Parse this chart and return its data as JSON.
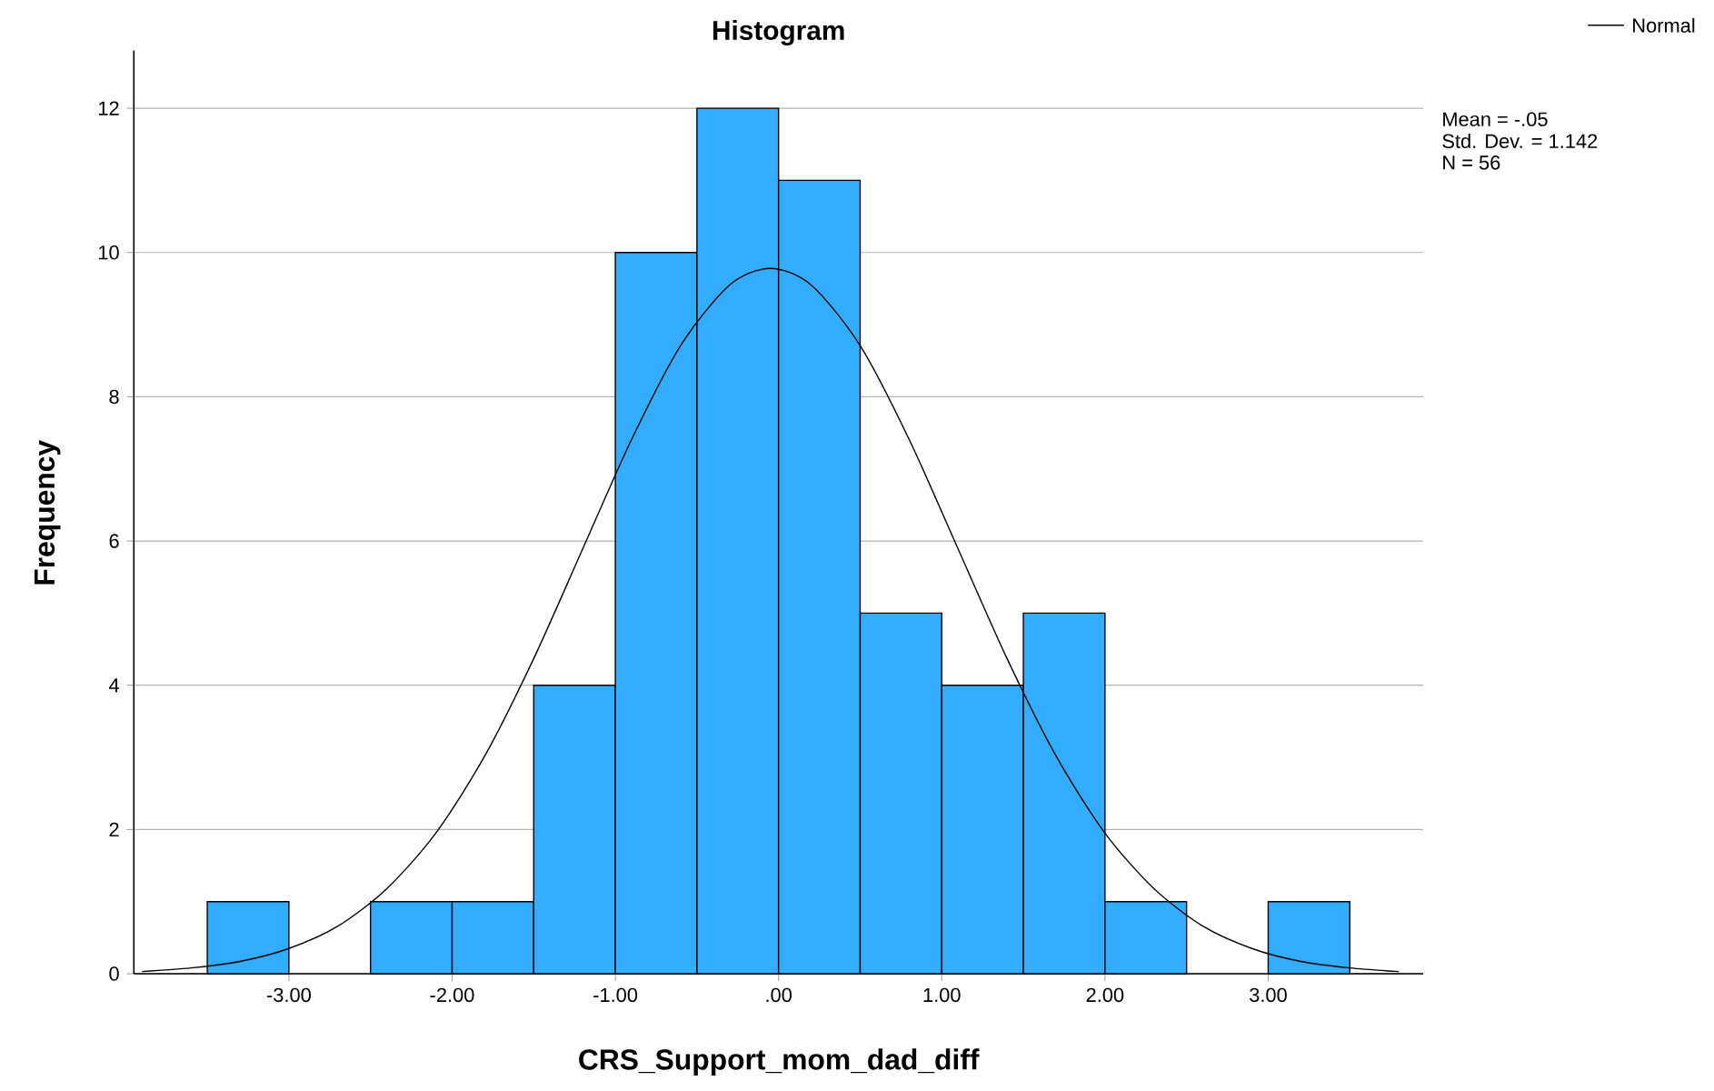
{
  "chart_data": {
    "type": "histogram",
    "title": "Histogram",
    "xlabel": "CRS_Support_mom_dad_diff",
    "ylabel": "Frequency",
    "bins": [
      -3.5,
      -3.0,
      -2.5,
      -2.0,
      -1.5,
      -1.0,
      -0.5,
      0.0,
      0.5,
      1.0,
      1.5,
      2.0,
      2.5,
      3.0,
      3.5
    ],
    "series": [
      {
        "color": "#33adff",
        "values": [
          1,
          0,
          1,
          1,
          4,
          10,
          12,
          11,
          5,
          4,
          5,
          1,
          0,
          1
        ]
      },
      {
        "type": "line",
        "name": "Normal",
        "color": "#000000",
        "x": [
          -3.9,
          -3.6,
          -3.3,
          -3.0,
          -2.7,
          -2.4,
          -2.1,
          -1.8,
          -1.5,
          -1.2,
          -0.9,
          -0.6,
          -0.3,
          -0.05,
          0.2,
          0.5,
          0.8,
          1.1,
          1.4,
          1.7,
          2.0,
          2.3,
          2.6,
          2.9,
          3.2,
          3.5,
          3.8
        ],
        "values": [
          0.03,
          0.08,
          0.17,
          0.35,
          0.66,
          1.18,
          1.95,
          3.02,
          4.37,
          5.89,
          7.41,
          8.71,
          9.55,
          9.78,
          9.55,
          8.71,
          7.41,
          5.89,
          4.37,
          3.02,
          1.95,
          1.18,
          0.66,
          0.35,
          0.17,
          0.08,
          0.03
        ]
      }
    ],
    "xlim": [
      -3.95,
      3.95
    ],
    "ylim": [
      0,
      12.8
    ],
    "xticks": [
      {
        "value": -3,
        "label": "-3.00"
      },
      {
        "value": -2,
        "label": "-2.00"
      },
      {
        "value": -1,
        "label": "-1.00"
      },
      {
        "value": 0,
        "label": ".00"
      },
      {
        "value": 1,
        "label": "1.00"
      },
      {
        "value": 2,
        "label": "2.00"
      },
      {
        "value": 3,
        "label": "3.00"
      }
    ],
    "yticks": [
      0,
      2,
      4,
      6,
      8,
      10,
      12
    ],
    "grid": "y",
    "legend": "top right",
    "annotations": [
      "Mean = -.05",
      "Std. Dev. = 1.142",
      "N = 56"
    ]
  }
}
